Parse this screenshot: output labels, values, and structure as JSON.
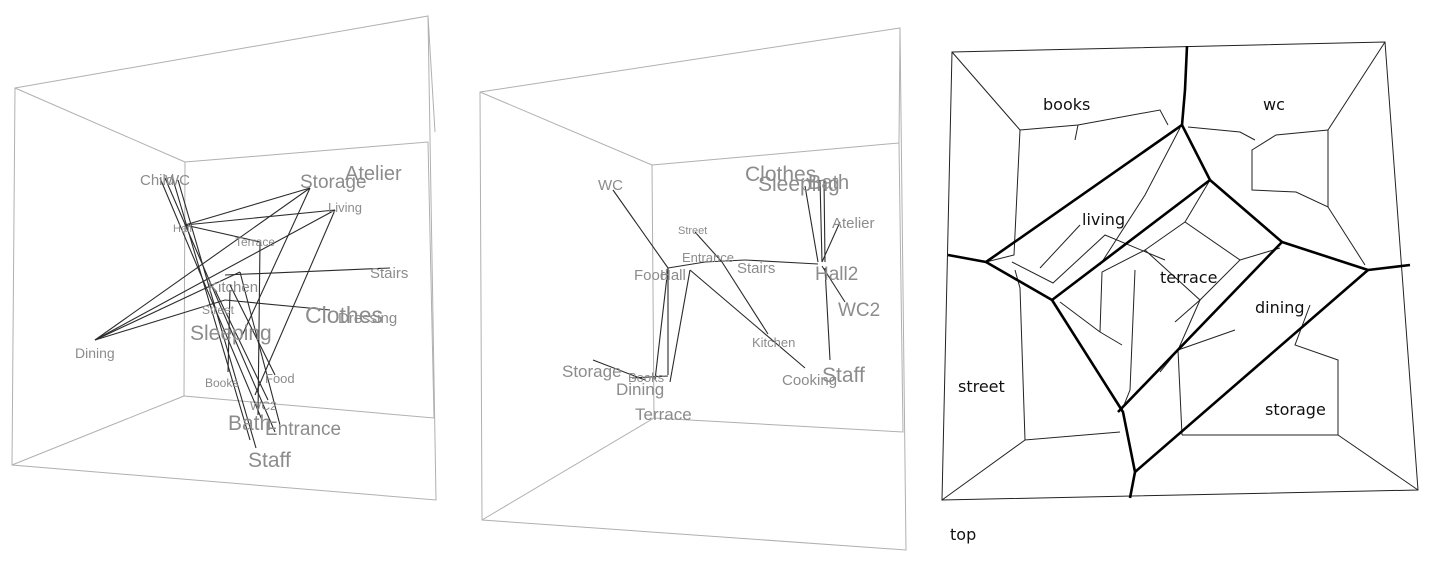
{
  "panels": [
    {
      "id": "graph-3d-a",
      "labels": [
        "Child",
        "WC",
        "Storage",
        "Atelier",
        "Living",
        "Hall",
        "Terrace",
        "Stairs",
        "Kitchen",
        "Street",
        "Clothes",
        "Dressing",
        "Sleeping",
        "Dining",
        "Books",
        "Food",
        "WC2",
        "Bath",
        "Entrance",
        "Staff"
      ]
    },
    {
      "id": "graph-3d-b",
      "labels": [
        "WC",
        "Clothes",
        "Sleeping",
        "Bath",
        "Street",
        "Atelier",
        "Entrance",
        "Food",
        "Hall",
        "Stairs",
        "Hall2",
        "WC2",
        "Kitchen",
        "Storage",
        "Books",
        "Dining",
        "Terrace",
        "Cooking",
        "Staff"
      ]
    },
    {
      "id": "floor-plan",
      "rooms": [
        "books",
        "wc",
        "living",
        "terrace",
        "dining",
        "street",
        "storage"
      ],
      "caption": "top"
    }
  ]
}
